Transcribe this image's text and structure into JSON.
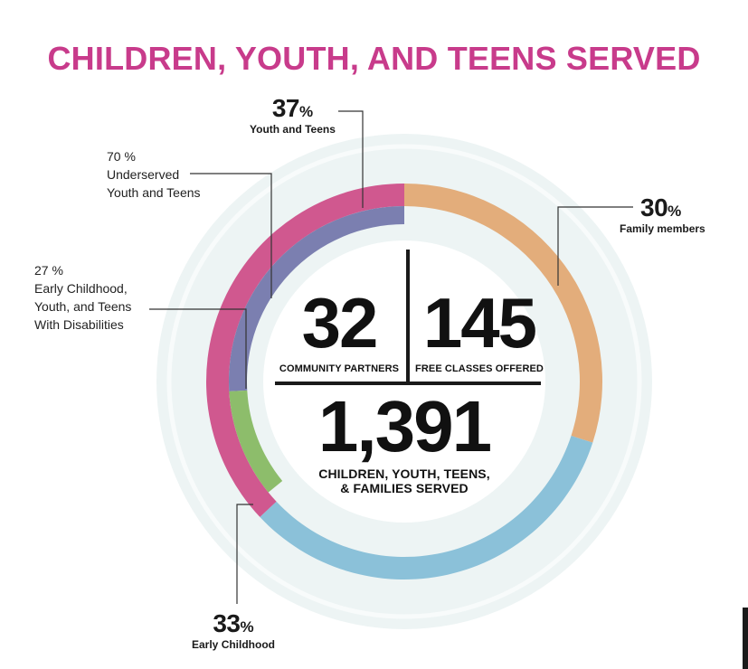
{
  "title": "CHILDREN, YOUTH, AND TEENS SERVED",
  "chart_data": [
    {
      "type": "pie",
      "variant": "donut-outer-ring",
      "slices": [
        {
          "label": "Youth and Teens",
          "value": 37,
          "unit": "%",
          "color": "#d0588f"
        },
        {
          "label": "Family members",
          "value": 30,
          "unit": "%",
          "color": "#e3ad7b"
        },
        {
          "label": "Early Childhood",
          "value": 33,
          "unit": "%",
          "color": "#8bc1d9"
        }
      ]
    },
    {
      "type": "pie",
      "variant": "donut-inner-ring",
      "parent": "Youth and Teens",
      "slices": [
        {
          "label": "Underserved Youth and Teens",
          "value": 70,
          "unit": "%",
          "color": "#7b7fb0"
        },
        {
          "label": "Early Childhood, Youth, and Teens With Disabilities",
          "value": 27,
          "unit": "%",
          "color": "#8dbd6b"
        }
      ]
    }
  ],
  "callouts": {
    "youth_teens": {
      "value": "37",
      "pct": "%",
      "label": "Youth and Teens"
    },
    "family": {
      "value": "30",
      "pct": "%",
      "label": "Family members"
    },
    "early_childhood": {
      "value": "33",
      "pct": "%",
      "label": "Early Childhood"
    },
    "underserved": {
      "value": "70 %",
      "line1": "Underserved",
      "line2": "Youth and Teens"
    },
    "disabilities": {
      "value": "27 %",
      "line1": "Early Childhood,",
      "line2": "Youth, and Teens",
      "line3": "With Disabilities"
    }
  },
  "center": {
    "partners": {
      "value": "32",
      "label": "COMMUNITY PARTNERS"
    },
    "classes": {
      "value": "145",
      "label": "FREE CLASSES OFFERED"
    },
    "served": {
      "value": "1,391",
      "label1": "CHILDREN, YOUTH, TEENS,",
      "label2": "& FAMILIES SERVED"
    }
  }
}
